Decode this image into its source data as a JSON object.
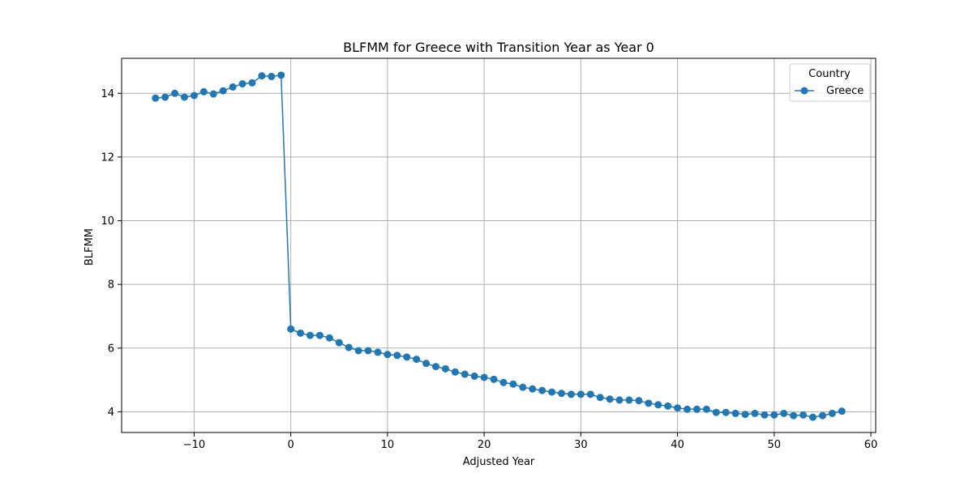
{
  "chart_data": {
    "type": "line",
    "title": "BLFMM for Greece with Transition Year as Year 0",
    "xlabel": "Adjusted Year",
    "ylabel": "BLFMM",
    "xlim": [
      -17.5,
      60.5
    ],
    "ylim": [
      3.35,
      15.1
    ],
    "x_ticks": [
      -10,
      0,
      10,
      20,
      30,
      40,
      50,
      60
    ],
    "x_tick_labels": [
      "−10",
      "0",
      "10",
      "20",
      "30",
      "40",
      "50",
      "60"
    ],
    "y_ticks": [
      4,
      6,
      8,
      10,
      12,
      14
    ],
    "y_tick_labels": [
      "4",
      "6",
      "8",
      "10",
      "12",
      "14"
    ],
    "grid": true,
    "legend": {
      "title": "Country",
      "position": "top-right"
    },
    "series": [
      {
        "name": "Greece",
        "color": "#1f77b4",
        "marker": "circle",
        "x": [
          -14,
          -13,
          -12,
          -11,
          -10,
          -9,
          -8,
          -7,
          -6,
          -5,
          -4,
          -3,
          -2,
          -1,
          0,
          1,
          2,
          3,
          4,
          5,
          6,
          7,
          8,
          9,
          10,
          11,
          12,
          13,
          14,
          15,
          16,
          17,
          18,
          19,
          20,
          21,
          22,
          23,
          24,
          25,
          26,
          27,
          28,
          29,
          30,
          31,
          32,
          33,
          34,
          35,
          36,
          37,
          38,
          39,
          40,
          41,
          42,
          43,
          44,
          45,
          46,
          47,
          48,
          49,
          50,
          51,
          52,
          53,
          54,
          55,
          56,
          57
        ],
        "y": [
          13.85,
          13.88,
          14.0,
          13.88,
          13.93,
          14.05,
          13.98,
          14.08,
          14.2,
          14.3,
          14.33,
          14.55,
          14.53,
          14.57,
          6.6,
          6.47,
          6.4,
          6.4,
          6.32,
          6.17,
          6.02,
          5.92,
          5.92,
          5.87,
          5.8,
          5.77,
          5.72,
          5.65,
          5.52,
          5.42,
          5.35,
          5.25,
          5.18,
          5.12,
          5.08,
          5.02,
          4.92,
          4.87,
          4.77,
          4.72,
          4.67,
          4.62,
          4.58,
          4.55,
          4.55,
          4.55,
          4.45,
          4.4,
          4.37,
          4.37,
          4.35,
          4.27,
          4.22,
          4.18,
          4.12,
          4.08,
          4.08,
          4.08,
          3.98,
          3.98,
          3.95,
          3.92,
          3.95,
          3.9,
          3.9,
          3.95,
          3.88,
          3.9,
          3.83,
          3.88,
          3.95,
          4.02
        ]
      }
    ]
  }
}
